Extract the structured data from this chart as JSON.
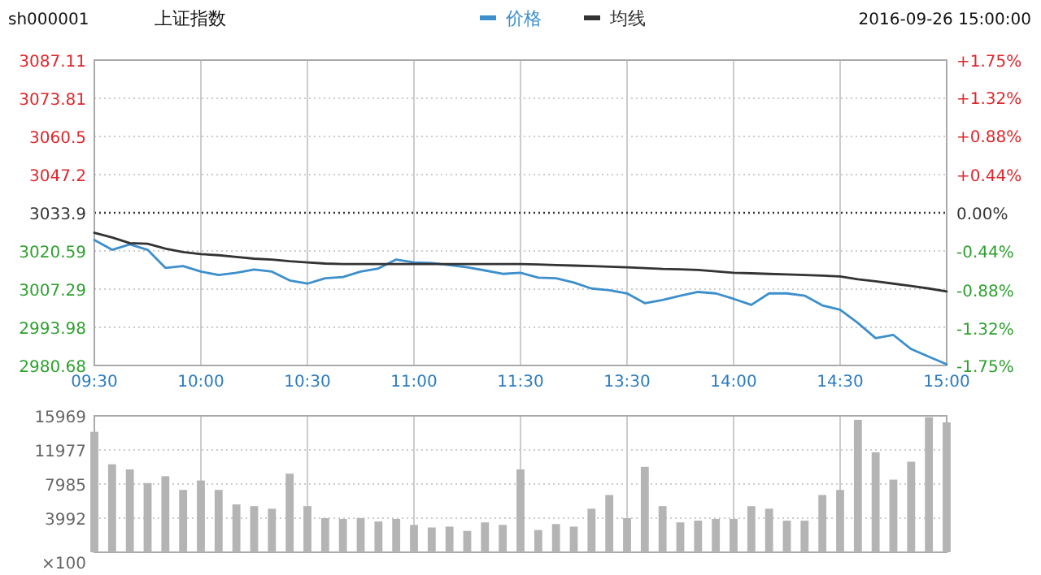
{
  "chart_data": [
    {
      "type": "line",
      "title": "上证指数",
      "annotations": [
        "sh000001",
        "2016-09-26 15:00:00"
      ],
      "categories": [
        "09:30",
        null,
        null,
        null,
        null,
        null,
        "10:00",
        null,
        null,
        null,
        null,
        null,
        "10:30",
        null,
        null,
        null,
        null,
        null,
        "11:00",
        null,
        null,
        null,
        null,
        null,
        "11:30",
        null,
        null,
        null,
        null,
        null,
        "13:30",
        null,
        null,
        null,
        null,
        null,
        "14:00",
        null,
        null,
        null,
        null,
        null,
        "14:30",
        null,
        null,
        null,
        null,
        null,
        "15:00"
      ],
      "series": [
        {
          "name": "价格",
          "color": "#3d8fcc",
          "values": [
            3024.4,
            3021.0,
            3022.9,
            3021.0,
            3014.7,
            3015.3,
            3013.4,
            3012.2,
            3013.0,
            3014.1,
            3013.4,
            3010.3,
            3009.2,
            3011.1,
            3011.5,
            3013.4,
            3014.5,
            3017.6,
            3016.6,
            3016.4,
            3015.7,
            3014.9,
            3013.8,
            3012.6,
            3013.0,
            3011.3,
            3011.1,
            3009.6,
            3007.5,
            3006.9,
            3005.8,
            3002.4,
            3003.5,
            3005.0,
            3006.3,
            3005.8,
            3003.9,
            3001.8,
            3005.8,
            3005.8,
            3005.0,
            3001.6,
            3000.1,
            2995.5,
            2990.2,
            2991.3,
            2986.4,
            2983.7,
            2981.1
          ]
        },
        {
          "name": "均线",
          "color": "#333333",
          "values": [
            3026.9,
            3025.3,
            3023.3,
            3023.1,
            3021.4,
            3020.2,
            3019.5,
            3019.1,
            3018.5,
            3017.9,
            3017.6,
            3017.0,
            3016.6,
            3016.2,
            3016.0,
            3016.0,
            3016.0,
            3016.0,
            3016.0,
            3016.0,
            3016.0,
            3016.0,
            3016.0,
            3016.0,
            3016.0,
            3015.9,
            3015.7,
            3015.5,
            3015.3,
            3015.1,
            3014.9,
            3014.6,
            3014.3,
            3014.2,
            3014.0,
            3013.5,
            3013.0,
            3012.8,
            3012.6,
            3012.4,
            3012.2,
            3012.0,
            3011.7,
            3010.7,
            3010.0,
            3009.2,
            3008.4,
            3007.5,
            3006.5
          ]
        }
      ],
      "ylim": [
        2980.68,
        3087.11
      ],
      "yticks": [
        2980.68,
        2993.98,
        3007.29,
        3020.59,
        3033.9,
        3047.2,
        3060.5,
        3073.81,
        3087.11
      ],
      "y2lim": [
        -1.75,
        1.75
      ],
      "y2ticks": [
        {
          "value": -1.75,
          "label": "-1.75%"
        },
        {
          "value": -1.32,
          "label": "-1.32%"
        },
        {
          "value": -0.88,
          "label": "-0.88%"
        },
        {
          "value": -0.44,
          "label": "-0.44%"
        },
        {
          "value": 0,
          "label": "0.00%"
        },
        {
          "value": 0.44,
          "label": "+0.44%"
        },
        {
          "value": 0.88,
          "label": "+0.88%"
        },
        {
          "value": 1.32,
          "label": "+1.32%"
        },
        {
          "value": 1.75,
          "label": "+1.75%"
        }
      ],
      "ref_lines": [
        {
          "axis": "y",
          "value": 3033.9,
          "color": "#333333",
          "line_style": "dotted"
        }
      ],
      "grid": true,
      "legend": "top"
    },
    {
      "type": "bar",
      "ylabel": "×100",
      "categories": [
        null,
        null,
        null,
        null,
        null,
        null,
        null,
        null,
        null,
        null,
        null,
        null,
        null,
        null,
        null,
        null,
        null,
        null,
        null,
        null,
        null,
        null,
        null,
        null,
        null,
        null,
        null,
        null,
        null,
        null,
        null,
        null,
        null,
        null,
        null,
        null,
        null,
        null,
        null,
        null,
        null,
        null,
        null,
        null,
        null,
        null,
        null,
        null,
        null
      ],
      "values": [
        14100,
        10300,
        9700,
        8100,
        8900,
        7300,
        8400,
        7300,
        5600,
        5400,
        5100,
        9200,
        5400,
        4000,
        3900,
        4000,
        3600,
        3900,
        3200,
        2900,
        3000,
        2500,
        3500,
        3200,
        9700,
        2600,
        3300,
        3000,
        5100,
        6700,
        4000,
        10000,
        5400,
        3500,
        3700,
        3900,
        3900,
        5400,
        5100,
        3700,
        3700,
        6700,
        7300,
        15500,
        11700,
        8500,
        10600,
        15800,
        15200
      ],
      "color": "#b4b4b4",
      "ylim": [
        0,
        15969
      ],
      "yticks": [
        3992,
        7985,
        11977,
        15969
      ],
      "grid": true
    }
  ]
}
